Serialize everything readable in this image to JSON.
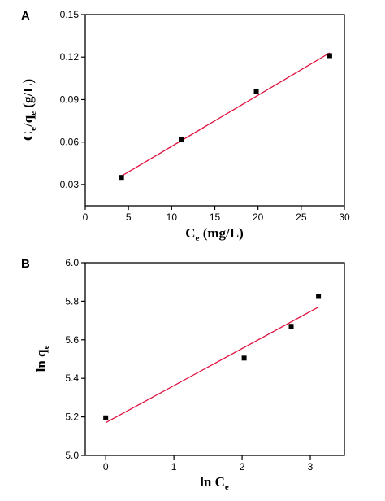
{
  "chart_data": [
    {
      "panel_label": "A",
      "type": "scatter",
      "xlabel": {
        "main": "C",
        "sub": "e",
        "rest": " (mg/L)"
      },
      "ylabel": {
        "p1": "C",
        "s1": "e",
        "p2": "/q",
        "s2": "e",
        "p3": " (g/L)"
      },
      "xlim": [
        0,
        30
      ],
      "ylim": [
        0.015,
        0.15
      ],
      "xticks": [
        0,
        5,
        10,
        15,
        20,
        25,
        30
      ],
      "xtick_labels": [
        "0",
        "5",
        "10",
        "15",
        "20",
        "25",
        "30"
      ],
      "yticks": [
        0.03,
        0.06,
        0.09,
        0.12,
        0.15
      ],
      "ytick_labels": [
        "0.03",
        "0.06",
        "0.09",
        "0.12",
        "0.15"
      ],
      "points": [
        {
          "x": 4.2,
          "y": 0.035
        },
        {
          "x": 11.1,
          "y": 0.062
        },
        {
          "x": 19.8,
          "y": 0.096
        },
        {
          "x": 28.3,
          "y": 0.121
        }
      ],
      "fit_line": {
        "x": [
          4.2,
          28.3
        ],
        "y": [
          0.036,
          0.123
        ]
      },
      "grid": false,
      "colors": {
        "points": "#000000",
        "fit_line": "#e0123f",
        "axes": "#000000"
      }
    },
    {
      "panel_label": "B",
      "type": "scatter",
      "xlabel": {
        "main": "ln C",
        "sub": "e",
        "rest": ""
      },
      "ylabel": {
        "p1": "ln q",
        "s1": "e",
        "p2": "",
        "s2": "",
        "p3": ""
      },
      "xlim": [
        -0.3,
        3.5
      ],
      "ylim": [
        5.0,
        6.0
      ],
      "xticks": [
        0,
        1,
        2,
        3
      ],
      "xtick_labels": [
        "0",
        "1",
        "2",
        "3"
      ],
      "yticks": [
        5.0,
        5.2,
        5.4,
        5.6,
        5.8,
        6.0
      ],
      "ytick_labels": [
        "5.0",
        "5.2",
        "5.4",
        "5.6",
        "5.8",
        "6.0"
      ],
      "points": [
        {
          "x": 0.0,
          "y": 5.195
        },
        {
          "x": 2.03,
          "y": 5.505
        },
        {
          "x": 2.72,
          "y": 5.67
        },
        {
          "x": 3.12,
          "y": 5.825
        }
      ],
      "fit_line": {
        "x": [
          0.0,
          3.12
        ],
        "y": [
          5.17,
          5.77
        ]
      },
      "grid": false,
      "colors": {
        "points": "#000000",
        "fit_line": "#e0123f",
        "axes": "#000000"
      }
    }
  ]
}
